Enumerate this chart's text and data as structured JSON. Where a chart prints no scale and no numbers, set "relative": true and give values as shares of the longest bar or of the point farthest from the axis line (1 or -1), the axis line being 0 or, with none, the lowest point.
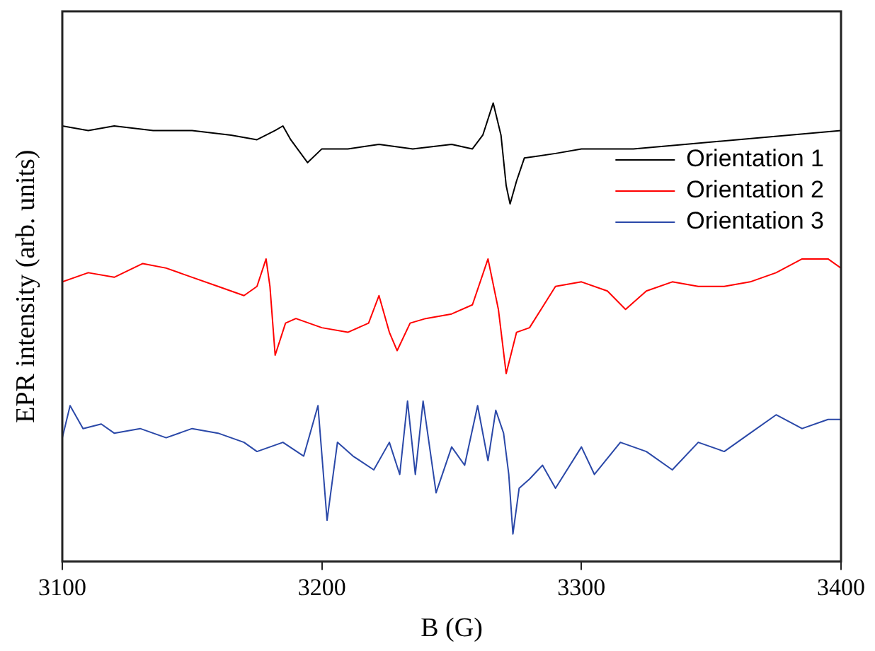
{
  "chart_data": {
    "type": "line",
    "xlabel": "B (G)",
    "ylabel": "EPR intensity (arb. units)",
    "relative": true,
    "xlim": [
      3100,
      3400
    ],
    "xticks": [
      3100,
      3200,
      3300,
      3400
    ],
    "grid": false,
    "legend": "top right",
    "marker": "none",
    "line_style": "solid",
    "series": [
      {
        "name": "Orientation 1",
        "color": "#000000",
        "x": [
          3100,
          3110,
          3120,
          3135,
          3150,
          3165,
          3175,
          3182,
          3185,
          3188,
          3194.5,
          3200,
          3210,
          3222,
          3235,
          3250,
          3258,
          3262,
          3266,
          3269,
          3271,
          3272.5,
          3275,
          3278,
          3290,
          3300,
          3320,
          3340,
          3360,
          3380,
          3400
        ],
        "values": [
          0.95,
          0.94,
          0.95,
          0.94,
          0.94,
          0.93,
          0.92,
          0.94,
          0.95,
          0.92,
          0.87,
          0.9,
          0.9,
          0.91,
          0.9,
          0.91,
          0.9,
          0.93,
          1.0,
          0.93,
          0.82,
          0.78,
          0.83,
          0.88,
          0.89,
          0.9,
          0.9,
          0.91,
          0.92,
          0.93,
          0.94
        ]
      },
      {
        "name": "Orientation 2",
        "color": "#ff0000",
        "x": [
          3100,
          3110,
          3120,
          3131,
          3140,
          3150,
          3160,
          3170,
          3175,
          3178.5,
          3180,
          3182,
          3186,
          3190,
          3200,
          3210,
          3218,
          3222,
          3226,
          3229,
          3234,
          3240,
          3250,
          3258,
          3264,
          3268,
          3271,
          3275,
          3280,
          3290,
          3300,
          3310,
          3317,
          3325,
          3335,
          3345,
          3355,
          3365,
          3375,
          3385,
          3395,
          3400
        ],
        "values": [
          0.61,
          0.63,
          0.62,
          0.65,
          0.64,
          0.62,
          0.6,
          0.58,
          0.6,
          0.66,
          0.6,
          0.45,
          0.52,
          0.53,
          0.51,
          0.5,
          0.52,
          0.58,
          0.5,
          0.46,
          0.52,
          0.53,
          0.54,
          0.56,
          0.66,
          0.55,
          0.41,
          0.5,
          0.51,
          0.6,
          0.61,
          0.59,
          0.55,
          0.59,
          0.61,
          0.6,
          0.6,
          0.61,
          0.63,
          0.66,
          0.66,
          0.64
        ]
      },
      {
        "name": "Orientation 3",
        "color": "#2a48a8",
        "x": [
          3100,
          3103,
          3108,
          3115,
          3120,
          3130,
          3140,
          3150,
          3160,
          3170,
          3175,
          3185,
          3193,
          3198.5,
          3202,
          3206,
          3212,
          3220,
          3226,
          3230,
          3233,
          3236,
          3239,
          3244,
          3250,
          3255,
          3260,
          3264,
          3267,
          3270,
          3272,
          3273.6,
          3276,
          3280,
          3285,
          3290,
          3300,
          3305,
          3315,
          3325,
          3335,
          3345,
          3355,
          3365,
          3375,
          3385,
          3395,
          3400
        ],
        "values": [
          0.27,
          0.34,
          0.29,
          0.3,
          0.28,
          0.29,
          0.27,
          0.29,
          0.28,
          0.26,
          0.24,
          0.26,
          0.23,
          0.34,
          0.09,
          0.26,
          0.23,
          0.2,
          0.26,
          0.19,
          0.35,
          0.19,
          0.35,
          0.15,
          0.25,
          0.21,
          0.34,
          0.22,
          0.33,
          0.28,
          0.19,
          0.06,
          0.16,
          0.18,
          0.21,
          0.16,
          0.25,
          0.19,
          0.26,
          0.24,
          0.2,
          0.26,
          0.24,
          0.28,
          0.32,
          0.29,
          0.31,
          0.31
        ]
      }
    ]
  }
}
